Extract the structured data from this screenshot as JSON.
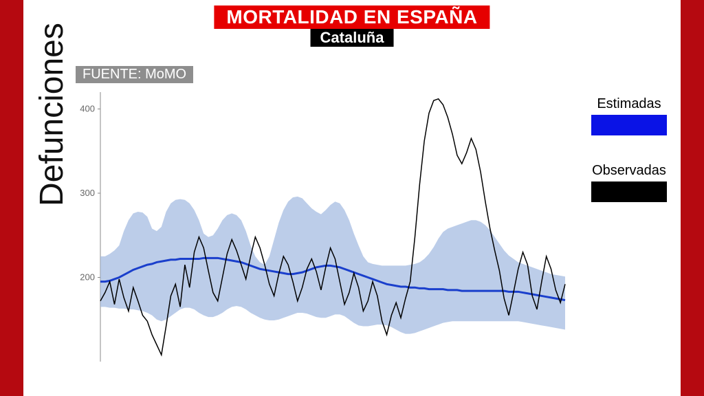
{
  "header": {
    "title": "MORTALIDAD EN ESPAÑA",
    "subtitle": "Cataluña",
    "title_bg": "#e60000",
    "title_fg": "#ffffff",
    "subtitle_bg": "#000000",
    "subtitle_fg": "#ffffff"
  },
  "source": {
    "label": "FUENTE: MoMO",
    "bg": "#8e8e8e",
    "fg": "#ffffff"
  },
  "ylabel": "Defunciones",
  "frame_color": "#b50910",
  "panel_color": "#ffffff",
  "legend": {
    "items": [
      {
        "label": "Estimadas",
        "color": "#0a13e6"
      },
      {
        "label": "Observadas",
        "color": "#000000"
      }
    ]
  },
  "chart": {
    "type": "line",
    "ylim": [
      100,
      420
    ],
    "yticks": [
      200,
      300,
      400
    ],
    "band_color": "#9fb8e0",
    "band_opacity": 0.7,
    "est_color": "#1a3fcc",
    "est_width": 3,
    "obs_color": "#000000",
    "obs_width": 1.5,
    "axis_color": "#888888",
    "n_points": 100,
    "estimated": [
      195,
      195,
      196,
      198,
      200,
      203,
      206,
      209,
      211,
      213,
      215,
      216,
      218,
      219,
      220,
      221,
      221,
      222,
      222,
      222,
      222,
      222,
      223,
      223,
      223,
      223,
      222,
      221,
      220,
      219,
      218,
      216,
      214,
      212,
      210,
      209,
      208,
      207,
      206,
      205,
      204,
      204,
      205,
      206,
      208,
      210,
      212,
      213,
      214,
      214,
      213,
      212,
      210,
      208,
      206,
      204,
      202,
      200,
      198,
      196,
      194,
      192,
      191,
      190,
      189,
      189,
      188,
      188,
      187,
      187,
      186,
      186,
      186,
      186,
      185,
      185,
      185,
      184,
      184,
      184,
      184,
      184,
      184,
      184,
      184,
      184,
      184,
      183,
      183,
      183,
      182,
      181,
      180,
      179,
      178,
      177,
      176,
      175,
      174,
      173
    ],
    "band_upper": [
      225,
      225,
      228,
      232,
      238,
      255,
      268,
      276,
      278,
      277,
      272,
      258,
      255,
      260,
      278,
      288,
      292,
      293,
      292,
      288,
      280,
      268,
      252,
      248,
      250,
      258,
      268,
      274,
      276,
      274,
      268,
      255,
      238,
      225,
      218,
      215,
      225,
      245,
      265,
      280,
      290,
      295,
      296,
      294,
      288,
      282,
      278,
      275,
      280,
      286,
      290,
      288,
      280,
      268,
      252,
      238,
      225,
      218,
      216,
      215,
      214,
      214,
      214,
      214,
      214,
      214,
      215,
      216,
      218,
      222,
      228,
      236,
      246,
      254,
      258,
      260,
      262,
      264,
      266,
      268,
      268,
      266,
      262,
      256,
      248,
      240,
      232,
      226,
      222,
      218,
      216,
      214,
      212,
      210,
      208,
      206,
      204,
      203,
      202,
      201
    ],
    "band_lower": [
      165,
      165,
      164,
      164,
      163,
      163,
      162,
      162,
      161,
      160,
      158,
      155,
      150,
      148,
      150,
      154,
      158,
      162,
      164,
      164,
      162,
      158,
      155,
      153,
      153,
      155,
      158,
      162,
      165,
      166,
      165,
      162,
      158,
      155,
      152,
      150,
      149,
      149,
      150,
      152,
      154,
      156,
      158,
      158,
      157,
      155,
      153,
      152,
      152,
      154,
      156,
      156,
      154,
      150,
      146,
      143,
      142,
      142,
      143,
      144,
      144,
      143,
      141,
      138,
      135,
      133,
      133,
      134,
      136,
      138,
      140,
      142,
      144,
      146,
      147,
      148,
      148,
      148,
      148,
      148,
      148,
      148,
      148,
      148,
      148,
      148,
      148,
      148,
      148,
      148,
      147,
      146,
      145,
      144,
      143,
      142,
      141,
      140,
      139,
      138
    ],
    "observed": [
      172,
      182,
      195,
      168,
      198,
      176,
      160,
      188,
      172,
      155,
      148,
      132,
      120,
      108,
      142,
      178,
      192,
      165,
      215,
      188,
      230,
      248,
      235,
      208,
      182,
      172,
      200,
      228,
      245,
      232,
      215,
      198,
      225,
      248,
      235,
      215,
      192,
      178,
      204,
      225,
      215,
      195,
      172,
      188,
      210,
      222,
      207,
      185,
      212,
      235,
      222,
      195,
      168,
      182,
      205,
      188,
      160,
      172,
      195,
      178,
      148,
      132,
      155,
      170,
      152,
      175,
      195,
      248,
      310,
      362,
      395,
      410,
      412,
      405,
      390,
      370,
      345,
      335,
      348,
      365,
      352,
      325,
      290,
      258,
      232,
      208,
      175,
      155,
      182,
      210,
      230,
      215,
      178,
      162,
      195,
      225,
      210,
      185,
      170,
      192
    ]
  }
}
